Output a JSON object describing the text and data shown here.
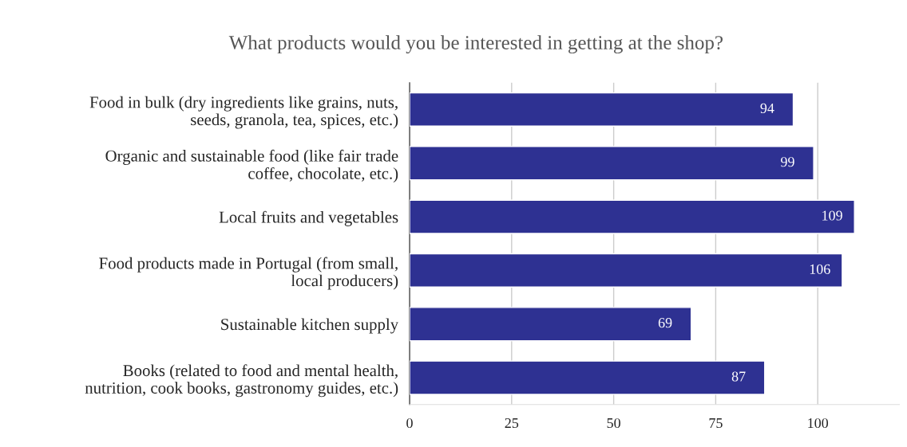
{
  "chart_data": {
    "type": "bar",
    "orientation": "horizontal",
    "title": "What products would you be interested in getting at the shop?",
    "categories": [
      "Food in bulk (dry ingredients like grains, nuts,\nseeds, granola, tea, spices, etc.)",
      "Organic and sustainable food (like fair trade\ncoffee, chocolate, etc.)",
      "Local fruits and vegetables",
      "Food products made in Portugal (from small,\nlocal producers)",
      "Sustainable kitchen supply",
      "Books (related to food and mental health,\nnutrition, cook books, gastronomy guides, etc.)"
    ],
    "values": [
      94,
      99,
      109,
      106,
      69,
      87
    ],
    "color": "#2e3192",
    "xlim": [
      0,
      120
    ],
    "xticks": [
      0,
      25,
      50,
      75,
      100
    ],
    "grid": "x",
    "data_labels": true
  }
}
